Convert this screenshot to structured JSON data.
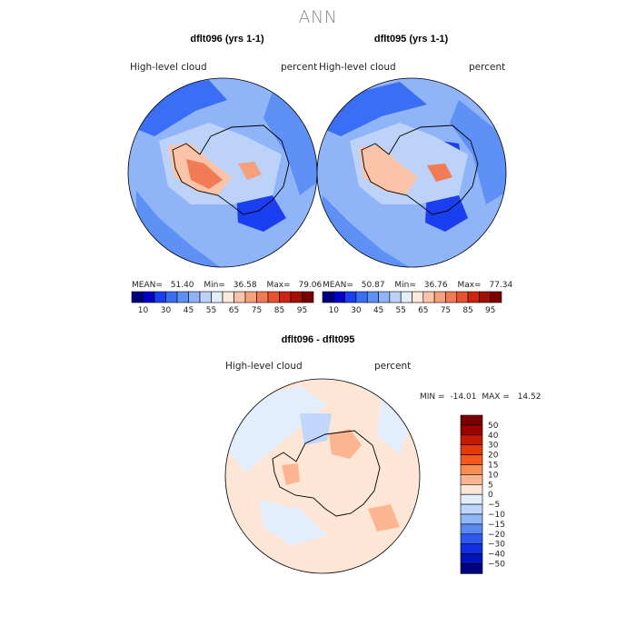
{
  "title": "ANN",
  "chart_data": [
    {
      "type": "heatmap",
      "title": "dflt096 (yrs 1-1)",
      "variable": "High-level cloud",
      "units": "percent",
      "stats": {
        "mean_label": "MEAN=",
        "mean": "51.40",
        "min_label": "Min=",
        "min": "36.58",
        "max_label": "Max=",
        "max": "79.06"
      },
      "colorbar": {
        "ticks": [
          "10",
          "30",
          "45",
          "55",
          "65",
          "75",
          "85",
          "95"
        ]
      }
    },
    {
      "type": "heatmap",
      "title": "dflt095 (yrs 1-1)",
      "variable": "High-level cloud",
      "units": "percent",
      "stats": {
        "mean_label": "MEAN=",
        "mean": "50.87",
        "min_label": "Min=",
        "min": "36.76",
        "max_label": "Max=",
        "max": "77.34"
      },
      "colorbar": {
        "ticks": [
          "10",
          "30",
          "45",
          "55",
          "65",
          "75",
          "85",
          "95"
        ]
      }
    },
    {
      "type": "heatmap",
      "title": "dflt096 - dflt095",
      "variable": "High-level cloud",
      "units": "percent",
      "stats": {
        "min_label": "MIN =",
        "min": "-14.01",
        "max_label": "MAX =",
        "max": "14.52"
      },
      "colorbar": {
        "ticks": [
          "50",
          "40",
          "30",
          "20",
          "15",
          "10",
          "5",
          "0",
          "−5",
          "−10",
          "−15",
          "−20",
          "−30",
          "−40",
          "−50"
        ]
      }
    }
  ],
  "colors": {
    "abs_scale": [
      "#00007f",
      "#0000c8",
      "#1a3ff0",
      "#3a6ef5",
      "#5f90f5",
      "#8fb4f7",
      "#bcd2f8",
      "#e3eefb",
      "#fde9dc",
      "#fbc4a8",
      "#f7a07e",
      "#f27a55",
      "#e8522f",
      "#cc2410",
      "#a30f05",
      "#7a0000"
    ],
    "diff_scale": [
      "#9b0000",
      "#c41a00",
      "#e33a0a",
      "#f6581d",
      "#fa8c55",
      "#fbb691",
      "#fde6d5",
      "#e2eefd",
      "#c0d6fb",
      "#90b6f7",
      "#5a88f2",
      "#2f58f0",
      "#0f2fe0",
      "#0014b8",
      "#000080"
    ]
  }
}
